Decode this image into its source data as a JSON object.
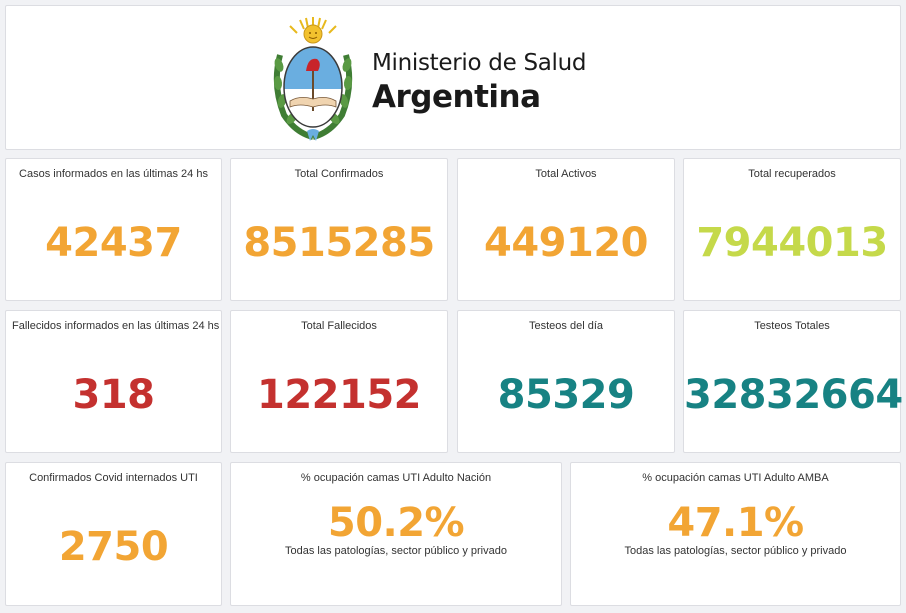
{
  "header": {
    "ministry": "Ministerio de Salud",
    "country": "Argentina",
    "emblem_icon": "coat-of-arms-argentina-icon"
  },
  "colors": {
    "orange": "#f2a534",
    "lime": "#c5d94a",
    "red": "#c4312f",
    "teal": "#178283"
  },
  "stats": {
    "casos_24h": {
      "label": "Casos informados en las últimas 24 hs",
      "value": "42437"
    },
    "total_confirmados": {
      "label": "Total Confirmados",
      "value": "8515285"
    },
    "total_activos": {
      "label": "Total Activos",
      "value": "449120"
    },
    "total_recuperados": {
      "label": "Total recuperados",
      "value": "7944013"
    },
    "fallecidos_24h": {
      "label": "Fallecidos informados en las últimas 24 hs",
      "value": "318"
    },
    "total_fallecidos": {
      "label": "Total Fallecidos",
      "value": "122152"
    },
    "testeos_dia": {
      "label": "Testeos del día",
      "value": "85329"
    },
    "testeos_totales": {
      "label": "Testeos Totales",
      "value": "32832664"
    },
    "internados_uti": {
      "label": "Confirmados Covid internados UTI",
      "value": "2750"
    },
    "ocupacion_nacion": {
      "label": "% ocupación camas UTI Adulto Nación",
      "value": "50.2%",
      "sub": "Todas las patologías, sector público y privado"
    },
    "ocupacion_amba": {
      "label": "% ocupación camas UTI Adulto AMBA",
      "value": "47.1%",
      "sub": "Todas las patologías, sector público y privado"
    }
  }
}
